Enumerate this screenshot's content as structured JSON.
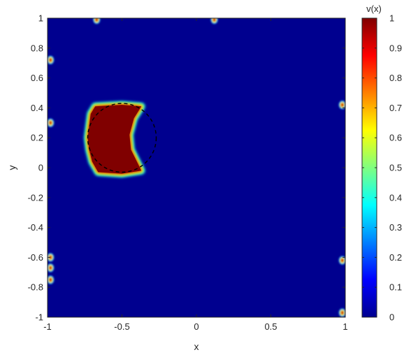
{
  "chart_data": {
    "type": "heatmap",
    "title": "",
    "xlabel": "x",
    "ylabel": "y",
    "colorbar_label": "v(x)",
    "colormap": "jet",
    "xlim": [
      -1,
      1
    ],
    "ylim": [
      -1,
      1
    ],
    "clim": [
      0,
      1
    ],
    "xticks": [
      -1,
      -0.5,
      0,
      0.5,
      1
    ],
    "xtick_labels": [
      "-1",
      "-0.5",
      "0",
      "0.5",
      "1"
    ],
    "yticks": [
      -1,
      -0.8,
      -0.6,
      -0.4,
      -0.2,
      0,
      0.2,
      0.4,
      0.6,
      0.8,
      1
    ],
    "ytick_labels": [
      "-1",
      "-0.8",
      "-0.6",
      "-0.4",
      "-0.2",
      "0",
      "0.2",
      "0.4",
      "0.6",
      "0.8",
      "1"
    ],
    "cticks": [
      0,
      0.1,
      0.2,
      0.3,
      0.4,
      0.5,
      0.6,
      0.7,
      0.8,
      0.9,
      1
    ],
    "ctick_labels": [
      "0",
      "0.1",
      "0.2",
      "0.3",
      "0.4",
      "0.5",
      "0.6",
      "0.7",
      "0.8",
      "0.9",
      "1"
    ],
    "high_region_outline": [
      [
        -0.68,
        0.41
      ],
      [
        -0.5,
        0.42
      ],
      [
        -0.37,
        0.41
      ],
      [
        -0.42,
        0.33
      ],
      [
        -0.45,
        0.22
      ],
      [
        -0.44,
        0.12
      ],
      [
        -0.37,
        -0.02
      ],
      [
        -0.5,
        -0.04
      ],
      [
        -0.66,
        -0.03
      ],
      [
        -0.7,
        0.04
      ],
      [
        -0.72,
        0.12
      ],
      [
        -0.73,
        0.2
      ],
      [
        -0.72,
        0.28
      ],
      [
        -0.71,
        0.36
      ]
    ],
    "dashed_circle": {
      "cx": -0.5,
      "cy": 0.2,
      "r": 0.23
    },
    "boundary_spots": [
      [
        -0.67,
        0.99
      ],
      [
        0.12,
        0.99
      ],
      [
        -0.98,
        0.72
      ],
      [
        -0.98,
        0.3
      ],
      [
        -0.98,
        -0.6
      ],
      [
        -0.98,
        -0.67
      ],
      [
        -0.98,
        -0.75
      ],
      [
        0.98,
        0.42
      ],
      [
        0.98,
        -0.62
      ],
      [
        0.98,
        -0.97
      ]
    ]
  }
}
